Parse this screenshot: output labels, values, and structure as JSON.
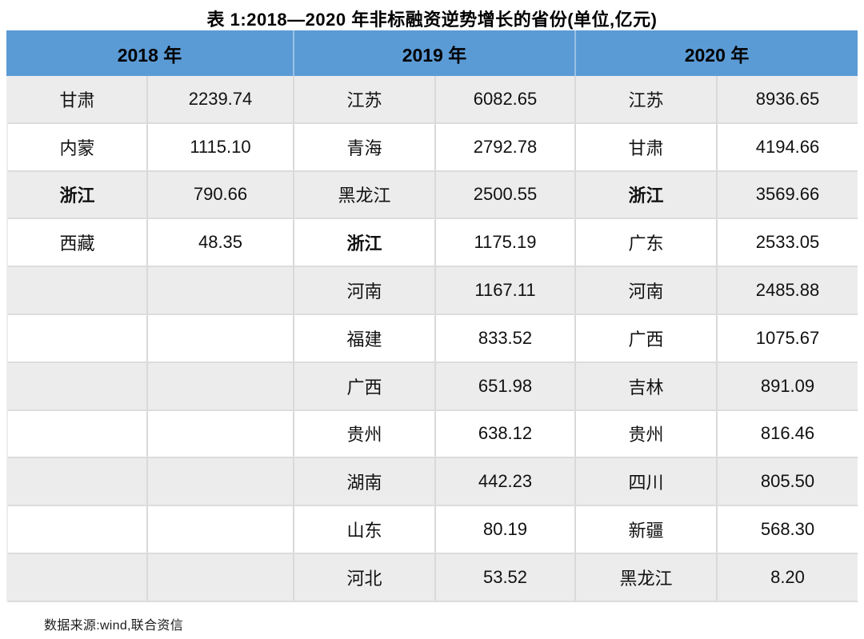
{
  "title": "表 1:2018—2020 年非标融资逆势增长的省份(单位,亿元)",
  "source_note": "数据来源:wind,联合资信",
  "colors": {
    "header_bg": "#5B9BD5",
    "header_text": "#000000",
    "stripe_bg": "#ECECEC",
    "row_bg": "#FFFFFF",
    "grid_line": "#D9D9D9"
  },
  "table": {
    "year_headers": [
      "2018 年",
      "2019 年",
      "2020 年"
    ],
    "sub_columns": [
      "province",
      "value"
    ],
    "rows": [
      [
        {
          "text": "甘肃",
          "bold": false
        },
        {
          "text": "2239.74",
          "bold": false
        },
        {
          "text": "江苏",
          "bold": false
        },
        {
          "text": "6082.65",
          "bold": false
        },
        {
          "text": "江苏",
          "bold": false
        },
        {
          "text": "8936.65",
          "bold": false
        }
      ],
      [
        {
          "text": "内蒙",
          "bold": false
        },
        {
          "text": "1115.10",
          "bold": false
        },
        {
          "text": "青海",
          "bold": false
        },
        {
          "text": "2792.78",
          "bold": false
        },
        {
          "text": "甘肃",
          "bold": false
        },
        {
          "text": "4194.66",
          "bold": false
        }
      ],
      [
        {
          "text": "浙江",
          "bold": true
        },
        {
          "text": "790.66",
          "bold": false
        },
        {
          "text": "黑龙江",
          "bold": false
        },
        {
          "text": "2500.55",
          "bold": false
        },
        {
          "text": "浙江",
          "bold": true
        },
        {
          "text": "3569.66",
          "bold": false
        }
      ],
      [
        {
          "text": "西藏",
          "bold": false
        },
        {
          "text": "48.35",
          "bold": false
        },
        {
          "text": "浙江",
          "bold": true
        },
        {
          "text": "1175.19",
          "bold": false
        },
        {
          "text": "广东",
          "bold": false
        },
        {
          "text": "2533.05",
          "bold": false
        }
      ],
      [
        {
          "text": "",
          "bold": false
        },
        {
          "text": "",
          "bold": false
        },
        {
          "text": "河南",
          "bold": false
        },
        {
          "text": "1167.11",
          "bold": false
        },
        {
          "text": "河南",
          "bold": false
        },
        {
          "text": "2485.88",
          "bold": false
        }
      ],
      [
        {
          "text": "",
          "bold": false
        },
        {
          "text": "",
          "bold": false
        },
        {
          "text": "福建",
          "bold": false
        },
        {
          "text": "833.52",
          "bold": false
        },
        {
          "text": "广西",
          "bold": false
        },
        {
          "text": "1075.67",
          "bold": false
        }
      ],
      [
        {
          "text": "",
          "bold": false
        },
        {
          "text": "",
          "bold": false
        },
        {
          "text": "广西",
          "bold": false
        },
        {
          "text": "651.98",
          "bold": false
        },
        {
          "text": "吉林",
          "bold": false
        },
        {
          "text": "891.09",
          "bold": false
        }
      ],
      [
        {
          "text": "",
          "bold": false
        },
        {
          "text": "",
          "bold": false
        },
        {
          "text": "贵州",
          "bold": false
        },
        {
          "text": "638.12",
          "bold": false
        },
        {
          "text": "贵州",
          "bold": false
        },
        {
          "text": "816.46",
          "bold": false
        }
      ],
      [
        {
          "text": "",
          "bold": false
        },
        {
          "text": "",
          "bold": false
        },
        {
          "text": "湖南",
          "bold": false
        },
        {
          "text": "442.23",
          "bold": false
        },
        {
          "text": "四川",
          "bold": false
        },
        {
          "text": "805.50",
          "bold": false
        }
      ],
      [
        {
          "text": "",
          "bold": false
        },
        {
          "text": "",
          "bold": false
        },
        {
          "text": "山东",
          "bold": false
        },
        {
          "text": "80.19",
          "bold": false
        },
        {
          "text": "新疆",
          "bold": false
        },
        {
          "text": "568.30",
          "bold": false
        }
      ],
      [
        {
          "text": "",
          "bold": false
        },
        {
          "text": "",
          "bold": false
        },
        {
          "text": "河北",
          "bold": false
        },
        {
          "text": "53.52",
          "bold": false
        },
        {
          "text": "黑龙江",
          "bold": false
        },
        {
          "text": "8.20",
          "bold": false
        }
      ]
    ]
  }
}
